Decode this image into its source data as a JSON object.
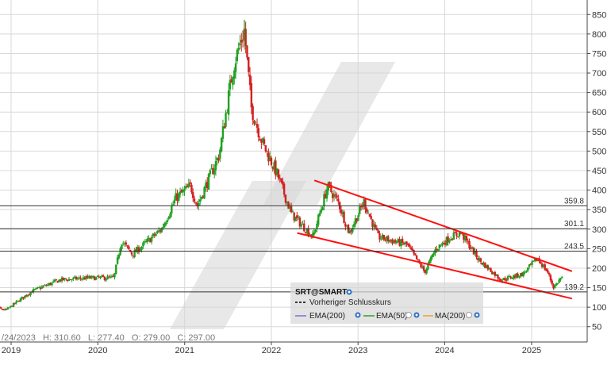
{
  "chart_data": {
    "type": "candlestick",
    "instrument": "SRT@SMART",
    "x_tick_labels": [
      "2019",
      "2020",
      "2021",
      "2022",
      "2023",
      "2024",
      "2025"
    ],
    "y_tick_labels": [
      50,
      100,
      150,
      200,
      250,
      300,
      350,
      400,
      450,
      500,
      550,
      600,
      650,
      700,
      750,
      800,
      850
    ],
    "ylim": [
      30,
      870
    ],
    "grid": true,
    "reference_lines": [
      {
        "label": "359.8",
        "value": 359.8
      },
      {
        "label": "301.1",
        "value": 301.1
      },
      {
        "label": "243.5",
        "value": 243.5
      },
      {
        "label": "139.2",
        "value": 139.2
      }
    ],
    "price_path": [
      [
        "2018-09-01",
        110
      ],
      [
        "2018-12-15",
        92
      ],
      [
        "2019-04-01",
        140
      ],
      [
        "2019-08-01",
        170
      ],
      [
        "2019-12-01",
        175
      ],
      [
        "2020-03-15",
        175
      ],
      [
        "2020-04-15",
        270
      ],
      [
        "2020-06-01",
        235
      ],
      [
        "2020-10-01",
        300
      ],
      [
        "2020-12-01",
        380
      ],
      [
        "2021-02-01",
        410
      ],
      [
        "2021-03-01",
        360
      ],
      [
        "2021-06-01",
        490
      ],
      [
        "2021-08-01",
        720
      ],
      [
        "2021-09-15",
        810
      ],
      [
        "2021-10-15",
        610
      ],
      [
        "2021-12-01",
        520
      ],
      [
        "2022-02-01",
        440
      ],
      [
        "2022-04-01",
        340
      ],
      [
        "2022-07-01",
        280
      ],
      [
        "2022-09-01",
        410
      ],
      [
        "2022-10-15",
        370
      ],
      [
        "2022-12-01",
        290
      ],
      [
        "2023-02-01",
        370
      ],
      [
        "2023-04-01",
        280
      ],
      [
        "2023-06-01",
        270
      ],
      [
        "2023-08-01",
        260
      ],
      [
        "2023-10-15",
        190
      ],
      [
        "2023-12-01",
        250
      ],
      [
        "2024-02-01",
        280
      ],
      [
        "2024-03-15",
        290
      ],
      [
        "2024-06-01",
        220
      ],
      [
        "2024-09-01",
        170
      ],
      [
        "2024-12-01",
        185
      ],
      [
        "2025-02-01",
        225
      ],
      [
        "2025-03-15",
        190
      ],
      [
        "2025-04-10",
        150
      ],
      [
        "2025-05-10",
        175
      ]
    ],
    "trend_channel": [
      {
        "from": [
          "2022-07-01",
          425
        ],
        "to": [
          "2025-06-20",
          192
        ]
      },
      {
        "from": [
          "2022-04-20",
          290
        ],
        "to": [
          "2025-06-20",
          122
        ]
      }
    ],
    "legend": {
      "title": "SRT@SMART",
      "previous_close_label": "Vorheriger Schlusskurs",
      "indicators": [
        "EMA(200)",
        "EMA(50)",
        "MA(200)"
      ],
      "colors": {
        "ema200": "#7b6fd0",
        "ema50": "#2ca02c",
        "ma200": "#f0a030"
      }
    },
    "ohlc_label": "/24/2023   H: 310.60   L: 277.40   O: 279.00   C: 297.00",
    "colors": {
      "up": "#22a022",
      "down": "#d32020",
      "trend": "#ff1010",
      "grid": "#d8d8d8",
      "ref_line": "#333333"
    }
  }
}
